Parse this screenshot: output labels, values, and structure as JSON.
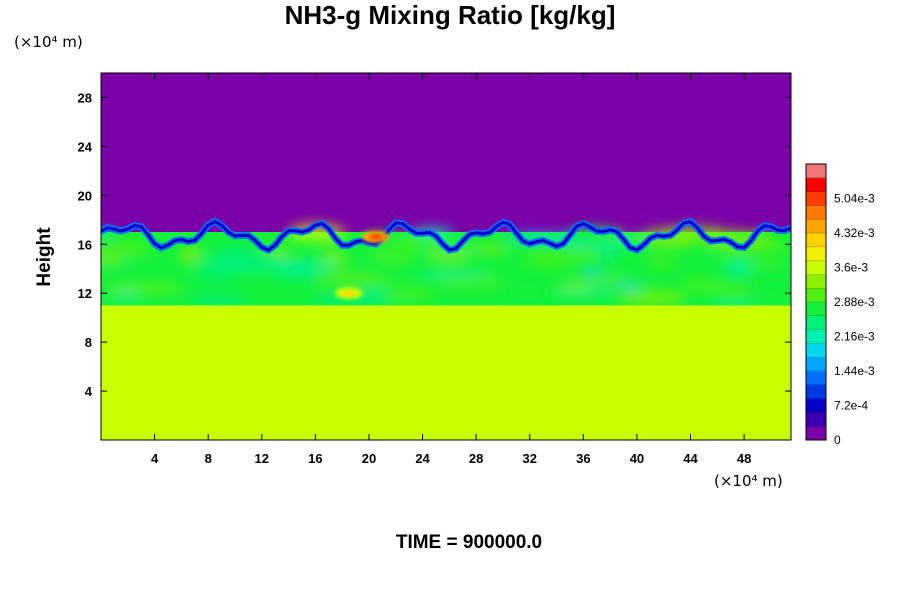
{
  "chart_data": {
    "type": "heatmap",
    "title": "NH3-g Mixing Ratio [kg/kg]",
    "ylabel": "Height",
    "xlabel": "",
    "y_unit": "(×10⁴ m)",
    "x_unit": "(×10⁴ m)",
    "footer": "TIME = 900000.0",
    "xlim": [
      0,
      51.5
    ],
    "ylim": [
      0,
      30
    ],
    "x_ticks": [
      "4",
      "8",
      "12",
      "16",
      "20",
      "24",
      "28",
      "32",
      "36",
      "40",
      "44",
      "48"
    ],
    "y_ticks": [
      "4",
      "8",
      "12",
      "16",
      "20",
      "24",
      "28"
    ],
    "colorbar": {
      "range": [
        0,
        0.00576
      ],
      "labels": [
        "0",
        "7.2e-4",
        "1.44e-3",
        "2.16e-3",
        "2.88e-3",
        "3.6e-3",
        "4.32e-3",
        "5.04e-3"
      ],
      "colors": [
        "#7a00a8",
        "#3c00b4",
        "#0a00c8",
        "#0038e6",
        "#0070ff",
        "#00a8ff",
        "#00d8f0",
        "#00f0b4",
        "#00f078",
        "#14f03c",
        "#50f014",
        "#8cf000",
        "#c8ff00",
        "#f0f000",
        "#ffd200",
        "#ffa500",
        "#ff7800",
        "#ff3c00",
        "#ff0000",
        "#f07878"
      ]
    },
    "layers": [
      {
        "name": "lower uniform layer",
        "y_range": [
          0,
          11
        ],
        "value": 0.0037
      },
      {
        "name": "mixed layer",
        "y_range": [
          11,
          17
        ],
        "value": 0.0028
      },
      {
        "name": "upper layer",
        "y_range": [
          17,
          30
        ],
        "value": 0.0
      }
    ],
    "hotspots": [
      {
        "x": 20.5,
        "y": 16.6,
        "value": 0.0052
      },
      {
        "x": 18.5,
        "y": 12.0,
        "value": 0.0041
      }
    ]
  }
}
